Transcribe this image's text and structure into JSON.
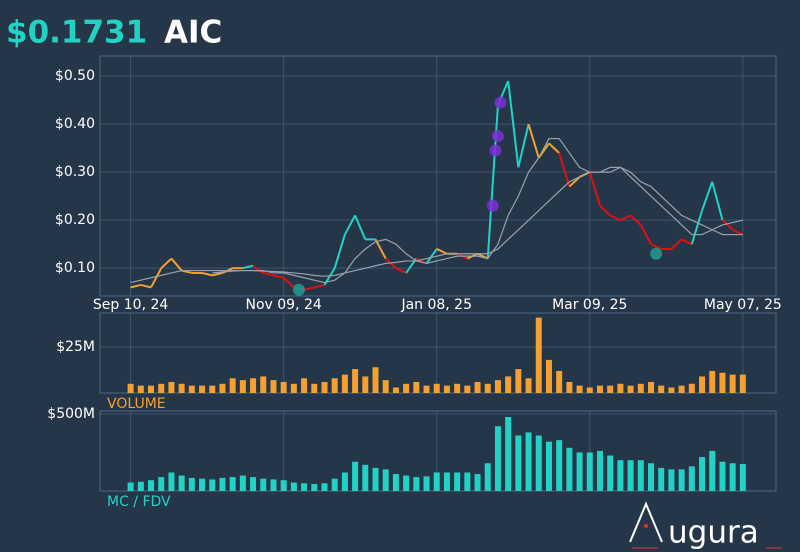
{
  "chart_data": {
    "type": "price-dashboard",
    "price_label": "$0.1731",
    "symbol": "AIC",
    "logo": "ugura",
    "price_color": "#22d3c5",
    "background": "#253649",
    "xlim": [
      -12,
      253
    ],
    "xticks": [
      {
        "value": 0,
        "label": "Sep 10, 24"
      },
      {
        "value": 60,
        "label": "Nov 09, 24"
      },
      {
        "value": 120,
        "label": "Jan 08, 25"
      },
      {
        "value": 180,
        "label": "Mar 09, 25"
      },
      {
        "value": 240,
        "label": "May 07, 25"
      }
    ],
    "grid": true,
    "price": {
      "ylim": [
        0.042,
        0.542
      ],
      "yticks": [
        {
          "value": 0.1,
          "label": "$0.10"
        },
        {
          "value": 0.2,
          "label": "$0.20"
        },
        {
          "value": 0.3,
          "label": "$0.30"
        },
        {
          "value": 0.4,
          "label": "$0.40"
        },
        {
          "value": 0.5,
          "label": "$0.50"
        }
      ],
      "x": [
        0,
        4,
        8,
        12,
        16,
        20,
        24,
        28,
        32,
        36,
        40,
        44,
        48,
        52,
        56,
        60,
        64,
        68,
        72,
        76,
        80,
        84,
        88,
        92,
        96,
        100,
        104,
        108,
        112,
        116,
        120,
        124,
        128,
        132,
        136,
        140,
        144,
        148,
        152,
        156,
        160,
        164,
        168,
        172,
        176,
        180,
        184,
        188,
        192,
        196,
        200,
        204,
        208,
        212,
        216,
        220,
        224,
        228,
        232,
        236,
        240
      ],
      "series": [
        {
          "values": [
            0.06,
            0.065,
            0.06,
            0.1,
            0.12,
            0.095,
            0.09,
            0.09,
            0.085,
            0.09,
            0.1,
            0.1,
            0.105,
            0.09,
            0.085,
            0.08,
            0.06,
            0.055,
            0.06,
            0.065,
            0.1,
            0.17,
            0.21,
            0.16,
            0.16,
            0.12,
            0.1,
            0.09,
            0.12,
            0.11,
            0.14,
            0.13,
            0.13,
            0.12,
            0.13,
            0.12,
            0.44,
            0.49,
            0.31,
            0.4,
            0.33,
            0.36,
            0.34,
            0.27,
            0.29,
            0.3,
            0.23,
            0.21,
            0.2,
            0.21,
            0.19,
            0.15,
            0.14,
            0.14,
            0.16,
            0.15,
            0.22,
            0.28,
            0.2,
            0.18,
            0.17
          ],
          "colors": [
            "#f5a030",
            "#f5a030",
            "#f5a030",
            "#f5a030",
            "#f5a030",
            "#f5a030",
            "#f5a030",
            "#f5a030",
            "#f5a030",
            "#f5a030",
            "#f5a030",
            "#f5a030",
            "#22d3c5",
            "#e01010",
            "#e01010",
            "#e01010",
            "#e01010",
            "#e01010",
            "#e01010",
            "#e01010",
            "#22d3c5",
            "#22d3c5",
            "#22d3c5",
            "#22d3c5",
            "#22d3c5",
            "#f5a030",
            "#e01010",
            "#e01010",
            "#22d3c5",
            "#e01010",
            "#22d3c5",
            "#f5a030",
            "#f5a030",
            "#e01010",
            "#f5a030",
            "#f5a030",
            "#22d3c5",
            "#22d3c5",
            "#22d3c5",
            "#22d3c5",
            "#f5a030",
            "#f5a030",
            "#f5a030",
            "#e01010",
            "#f5a030",
            "#f5a030",
            "#e01010",
            "#e01010",
            "#e01010",
            "#e01010",
            "#e01010",
            "#e01010",
            "#e01010",
            "#e01010",
            "#e01010",
            "#e01010",
            "#22d3c5",
            "#22d3c5",
            "#22d3c5",
            "#e01010",
            "#e01010"
          ]
        },
        {
          "color": "#9aa3ad",
          "values": [
            0.07,
            0.075,
            0.08,
            0.085,
            0.09,
            0.095,
            0.095,
            0.095,
            0.095,
            0.095,
            0.095,
            0.095,
            0.095,
            0.095,
            0.09,
            0.09,
            0.085,
            0.08,
            0.075,
            0.07,
            0.075,
            0.09,
            0.12,
            0.14,
            0.155,
            0.16,
            0.15,
            0.13,
            0.115,
            0.11,
            0.115,
            0.12,
            0.125,
            0.125,
            0.125,
            0.12,
            0.15,
            0.21,
            0.25,
            0.3,
            0.33,
            0.37,
            0.37,
            0.34,
            0.31,
            0.3,
            0.3,
            0.31,
            0.31,
            0.29,
            0.27,
            0.25,
            0.23,
            0.21,
            0.19,
            0.17,
            0.17,
            0.18,
            0.19,
            0.195,
            0.2
          ]
        },
        {
          "color": "#9aa3ad",
          "values": [
            null,
            null,
            null,
            null,
            null,
            null,
            null,
            null,
            0.09,
            0.092,
            0.094,
            0.095,
            0.095,
            0.094,
            0.093,
            0.092,
            0.09,
            0.088,
            0.085,
            0.083,
            0.085,
            0.09,
            0.095,
            0.1,
            0.105,
            0.11,
            0.112,
            0.115,
            0.115,
            0.12,
            0.125,
            0.13,
            0.13,
            0.13,
            0.13,
            0.13,
            0.14,
            0.16,
            0.18,
            0.2,
            0.22,
            0.24,
            0.26,
            0.28,
            0.29,
            0.3,
            0.3,
            0.3,
            0.31,
            0.3,
            0.28,
            0.27,
            0.25,
            0.23,
            0.21,
            0.2,
            0.19,
            0.18,
            0.17,
            0.17,
            0.17
          ]
        }
      ],
      "markers": [
        {
          "color": "#7b2fd6",
          "x": [
            145,
            144,
            143,
            142
          ],
          "values": [
            0.445,
            0.375,
            0.345,
            0.23
          ]
        },
        {
          "color": "#1f9e97",
          "x": [
            66,
            206
          ],
          "values": [
            0.055,
            0.13
          ]
        }
      ]
    },
    "volume": {
      "label": "VOLUME",
      "color": "#f5a030",
      "ylim": [
        0,
        43.5
      ],
      "yticks": [
        {
          "value": 25,
          "label": "$25M"
        }
      ],
      "values": [
        5,
        4,
        4,
        5,
        6,
        5,
        4,
        4,
        4,
        5,
        8,
        7,
        8,
        9,
        7,
        6,
        5,
        8,
        5,
        6,
        8,
        10,
        13,
        9,
        14,
        7,
        3,
        5,
        6,
        4,
        5,
        4,
        5,
        4,
        6,
        5,
        7,
        9,
        13,
        8,
        41,
        18,
        12,
        6,
        4,
        3,
        4,
        4,
        5,
        4,
        5,
        6,
        4,
        3,
        4,
        5,
        9,
        12,
        11,
        10,
        10
      ]
    },
    "mc": {
      "label": "MC / FDV",
      "color": "#22d3c5",
      "ylim": [
        0,
        519
      ],
      "yticks": [
        {
          "value": 500,
          "label": "$500M"
        }
      ],
      "values": [
        55,
        60,
        70,
        90,
        120,
        100,
        85,
        80,
        75,
        85,
        90,
        100,
        90,
        80,
        75,
        70,
        55,
        50,
        45,
        50,
        80,
        120,
        190,
        170,
        150,
        140,
        110,
        100,
        90,
        95,
        120,
        120,
        120,
        120,
        110,
        180,
        420,
        480,
        360,
        380,
        360,
        320,
        330,
        280,
        250,
        250,
        260,
        230,
        200,
        200,
        200,
        180,
        150,
        140,
        140,
        160,
        220,
        260,
        190,
        180,
        175
      ]
    }
  }
}
